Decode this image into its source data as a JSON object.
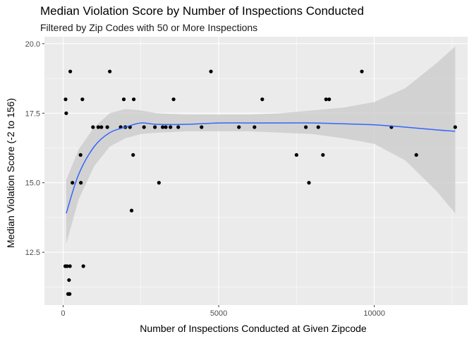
{
  "chart_data": {
    "type": "scatter",
    "title": "Median Violation Score by Number of Inspections Conducted",
    "subtitle": "Filtered by Zip Codes with 50 or More Inspections",
    "xlabel": "Number of Inspections Conducted at Given Zipcode",
    "ylabel": "Median Violation Score (-2 to 156)",
    "xlim": [
      -600,
      13000
    ],
    "ylim": [
      10.6,
      20.25
    ],
    "x_ticks": [
      0,
      5000,
      10000
    ],
    "x_tick_labels": [
      "0",
      "5000",
      "10000"
    ],
    "y_ticks": [
      12.5,
      15.0,
      17.5,
      20.0
    ],
    "y_tick_labels": [
      "12.5",
      "15.0",
      "17.5",
      "20.0"
    ],
    "grid": true,
    "legend": "none",
    "colors": {
      "panel": "#ebebeb",
      "grid_major": "#ffffff",
      "point": "#000000",
      "smooth_line": "#3366ff",
      "ribbon": "#c9c9c9"
    },
    "points": [
      {
        "x": 80,
        "y": 18.0
      },
      {
        "x": 100,
        "y": 17.5
      },
      {
        "x": 70,
        "y": 12.0
      },
      {
        "x": 130,
        "y": 12.0
      },
      {
        "x": 220,
        "y": 12.0
      },
      {
        "x": 190,
        "y": 11.5
      },
      {
        "x": 160,
        "y": 11.0
      },
      {
        "x": 210,
        "y": 11.0
      },
      {
        "x": 230,
        "y": 19.0
      },
      {
        "x": 300,
        "y": 15.0
      },
      {
        "x": 560,
        "y": 16.0
      },
      {
        "x": 570,
        "y": 15.0
      },
      {
        "x": 620,
        "y": 18.0
      },
      {
        "x": 650,
        "y": 12.0
      },
      {
        "x": 960,
        "y": 17.0
      },
      {
        "x": 1130,
        "y": 17.0
      },
      {
        "x": 1230,
        "y": 17.0
      },
      {
        "x": 1420,
        "y": 17.0
      },
      {
        "x": 1500,
        "y": 19.0
      },
      {
        "x": 1850,
        "y": 17.0
      },
      {
        "x": 1950,
        "y": 18.0
      },
      {
        "x": 2000,
        "y": 17.0
      },
      {
        "x": 2150,
        "y": 17.0
      },
      {
        "x": 2200,
        "y": 14.0
      },
      {
        "x": 2250,
        "y": 16.0
      },
      {
        "x": 2270,
        "y": 18.0
      },
      {
        "x": 2600,
        "y": 17.0
      },
      {
        "x": 2950,
        "y": 17.0
      },
      {
        "x": 3080,
        "y": 15.0
      },
      {
        "x": 3200,
        "y": 17.0
      },
      {
        "x": 3300,
        "y": 17.0
      },
      {
        "x": 3450,
        "y": 17.0
      },
      {
        "x": 3550,
        "y": 18.0
      },
      {
        "x": 3700,
        "y": 17.0
      },
      {
        "x": 4450,
        "y": 17.0
      },
      {
        "x": 4750,
        "y": 19.0
      },
      {
        "x": 5650,
        "y": 17.0
      },
      {
        "x": 6150,
        "y": 17.0
      },
      {
        "x": 6400,
        "y": 18.0
      },
      {
        "x": 7500,
        "y": 16.0
      },
      {
        "x": 7800,
        "y": 17.0
      },
      {
        "x": 7900,
        "y": 15.0
      },
      {
        "x": 8200,
        "y": 17.0
      },
      {
        "x": 8350,
        "y": 16.0
      },
      {
        "x": 8450,
        "y": 18.0
      },
      {
        "x": 8550,
        "y": 18.0
      },
      {
        "x": 9600,
        "y": 19.0
      },
      {
        "x": 10550,
        "y": 17.0
      },
      {
        "x": 11350,
        "y": 16.0
      },
      {
        "x": 12600,
        "y": 17.0
      }
    ],
    "smooth": {
      "x": [
        100,
        500,
        1000,
        1500,
        2000,
        2500,
        3000,
        4000,
        5000,
        6000,
        7000,
        8000,
        9000,
        10000,
        11000,
        12000,
        12600
      ],
      "y": [
        13.9,
        15.3,
        16.3,
        16.8,
        17.0,
        17.15,
        17.1,
        17.1,
        17.15,
        17.15,
        17.15,
        17.15,
        17.12,
        17.08,
        17.0,
        16.9,
        16.85
      ],
      "lower": [
        12.8,
        14.4,
        15.6,
        16.3,
        16.6,
        16.75,
        16.8,
        16.85,
        16.85,
        16.85,
        16.8,
        16.75,
        16.6,
        16.4,
        15.8,
        14.7,
        13.9
      ],
      "upper": [
        15.1,
        16.2,
        17.0,
        17.5,
        17.65,
        17.6,
        17.5,
        17.45,
        17.45,
        17.45,
        17.5,
        17.6,
        17.7,
        17.9,
        18.4,
        19.3,
        19.9
      ]
    }
  }
}
